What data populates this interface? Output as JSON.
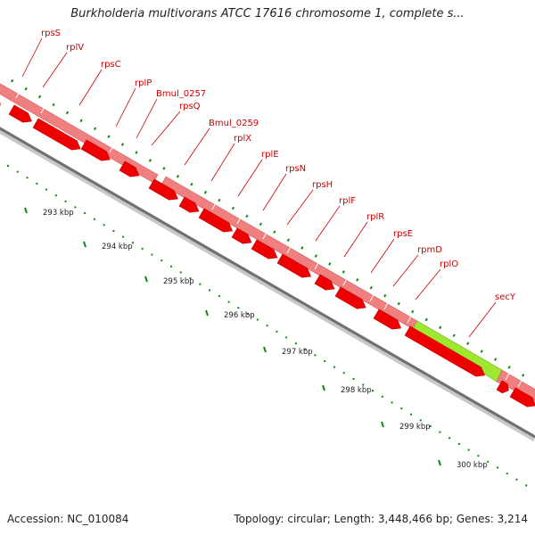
{
  "title": "Burkholderia multivorans ATCC 17616 chromosome 1, complete s...",
  "footer": {
    "accession": "Accession: NC_010084",
    "info": "Topology: circular; Length: 3,448,466 bp; Genes: 3,214"
  },
  "genes": [
    {
      "label": "rpsS"
    },
    {
      "label": "rplV"
    },
    {
      "label": "rpsC"
    },
    {
      "label": "rplP"
    },
    {
      "label": "Bmul_0257"
    },
    {
      "label": "rpsQ"
    },
    {
      "label": "Bmul_0259"
    },
    {
      "label": "rplX"
    },
    {
      "label": "rplE"
    },
    {
      "label": "rpsN"
    },
    {
      "label": "rpsH"
    },
    {
      "label": "rplF"
    },
    {
      "label": "rplR"
    },
    {
      "label": "rpsE"
    },
    {
      "label": "rpmD"
    },
    {
      "label": "rplO"
    },
    {
      "label": "secY"
    }
  ],
  "ruler": [
    "293 kbp",
    "294 kbp",
    "295 kbp",
    "296 kbp",
    "297 kbp",
    "298 kbp",
    "299 kbp",
    "300 kbp"
  ],
  "colors": {
    "gene_band": "#f08080",
    "highlight": "#9ee830",
    "cds_arrow": "#ee0000",
    "backbone": "#888888",
    "tick": "#118811",
    "label": "#cc0000"
  }
}
